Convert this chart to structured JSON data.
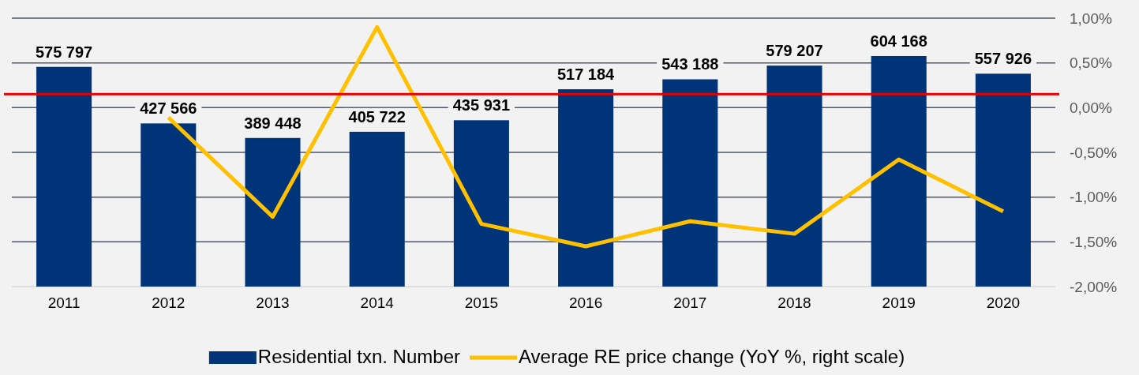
{
  "chart_data": {
    "type": "bar",
    "categories": [
      "2011",
      "2012",
      "2013",
      "2014",
      "2015",
      "2016",
      "2017",
      "2018",
      "2019",
      "2020"
    ],
    "series": [
      {
        "name": "Residential txn. Number",
        "color": "#003478",
        "values": [
          575797,
          427566,
          389448,
          405722,
          435931,
          517184,
          543188,
          579207,
          604168,
          557926
        ],
        "value_labels": [
          "575 797",
          "427 566",
          "389 448",
          "405 722",
          "435 931",
          "517 184",
          "543 188",
          "579 207",
          "604 168",
          "557 926"
        ]
      },
      {
        "name": "Average RE price change (YoY %, right scale)",
        "type": "line",
        "axis": "y2",
        "color": "#ffc000",
        "values": [
          null,
          -0.11,
          -1.22,
          0.9,
          -1.3,
          -1.55,
          -1.27,
          -1.41,
          -0.58,
          -1.16
        ]
      }
    ],
    "y2lim": [
      -2,
      1
    ],
    "y2ticks": [
      {
        "value": -2,
        "label": "-2,00%"
      },
      {
        "value": -1.5,
        "label": "-1,50%"
      },
      {
        "value": -1,
        "label": "-1,00%"
      },
      {
        "value": -0.5,
        "label": "-0,50%"
      },
      {
        "value": 0,
        "label": "0,00%"
      },
      {
        "value": 0.5,
        "label": "0,50%"
      },
      {
        "value": 1,
        "label": "1,00%"
      }
    ],
    "ref_lines": [
      {
        "axis": "y2",
        "value": 0.15,
        "color": "#e60000"
      }
    ],
    "grid": "y2",
    "tick_labels": "xy2",
    "legend": "bottom"
  }
}
